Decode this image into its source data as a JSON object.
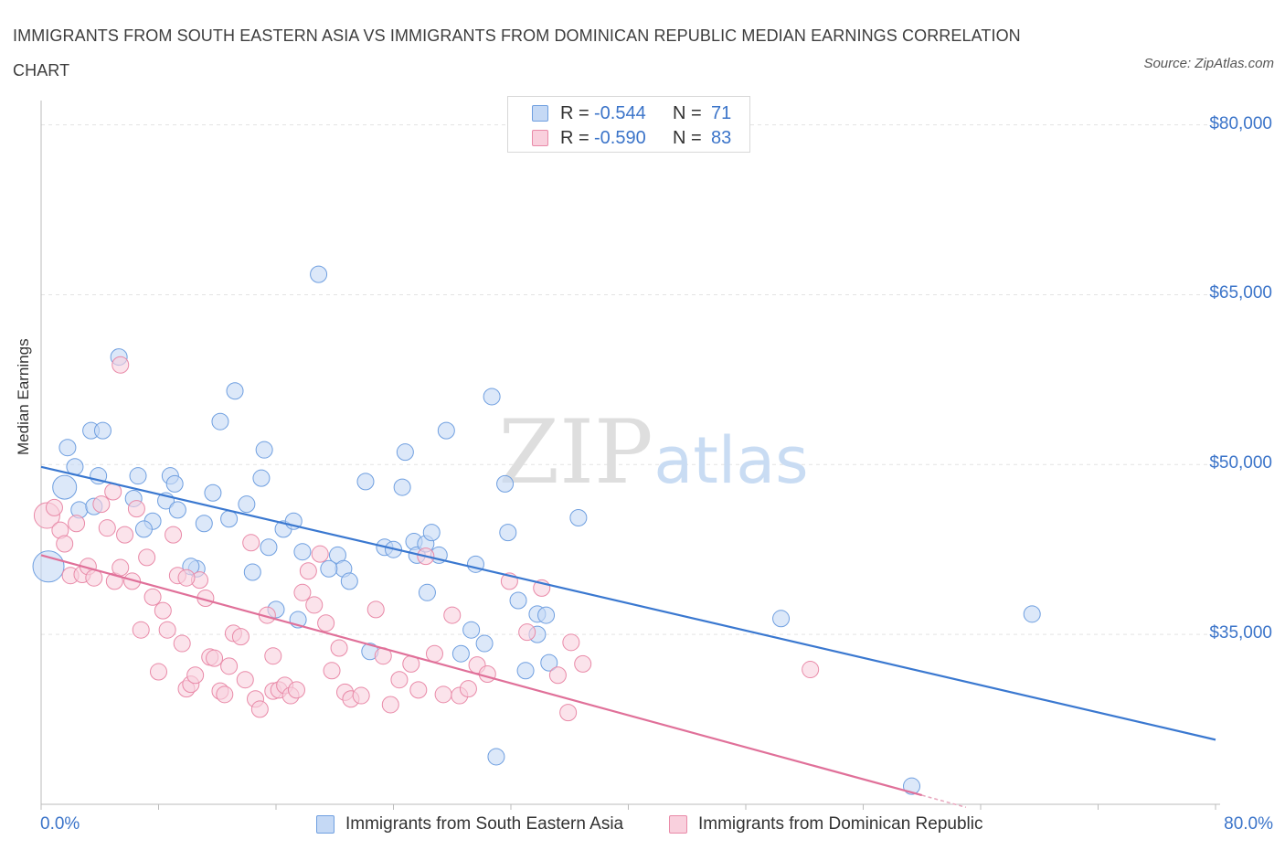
{
  "title": "IMMIGRANTS FROM SOUTH EASTERN ASIA VS IMMIGRANTS FROM DOMINICAN REPUBLIC MEDIAN EARNINGS CORRELATION CHART",
  "source": "Source: ZipAtlas.com",
  "watermark": {
    "zip": "ZIP",
    "atlas": "atlas"
  },
  "legend": {
    "r_label": "R =",
    "n_label": "N =",
    "entries": [
      {
        "r": "-0.544",
        "n": "71",
        "color": "#6f9fe0"
      },
      {
        "r": "-0.590",
        "n": "83",
        "color": "#e98aa8"
      }
    ]
  },
  "chart_data": {
    "type": "scatter",
    "ylabel": "Median Earnings",
    "xlim": [
      0,
      80
    ],
    "ylim": [
      20000,
      81500
    ],
    "y_ticks": [
      {
        "value": 35000,
        "label": "$35,000"
      },
      {
        "value": 50000,
        "label": "$50,000"
      },
      {
        "value": 65000,
        "label": "$65,000"
      },
      {
        "value": 80000,
        "label": "$80,000"
      }
    ],
    "x_tick_labels": [
      {
        "value": 0,
        "label": "0.0%"
      },
      {
        "value": 80,
        "label": "80.0%"
      }
    ],
    "grid": true,
    "legend_position": "top-center",
    "series": [
      {
        "name": "Immigrants from South Eastern Asia",
        "color": "#6f9fe0",
        "fill": "#c5d9f5",
        "trend": {
          "x": [
            0,
            80
          ],
          "y": [
            49800,
            25700
          ]
        },
        "points": [
          [
            0.5,
            41000
          ],
          [
            1.6,
            48000
          ],
          [
            2.6,
            46000
          ],
          [
            1.8,
            51500
          ],
          [
            2.3,
            49800
          ],
          [
            3.4,
            53000
          ],
          [
            5.3,
            59500
          ],
          [
            4.2,
            53000
          ],
          [
            3.9,
            49000
          ],
          [
            6.6,
            49000
          ],
          [
            8.8,
            49000
          ],
          [
            6.3,
            47000
          ],
          [
            9.1,
            48300
          ],
          [
            8.5,
            46800
          ],
          [
            7.6,
            45000
          ],
          [
            9.3,
            46000
          ],
          [
            11.7,
            47500
          ],
          [
            12.2,
            53800
          ],
          [
            13.2,
            56500
          ],
          [
            11.1,
            44800
          ],
          [
            12.8,
            45200
          ],
          [
            10.6,
            40800
          ],
          [
            14.0,
            46500
          ],
          [
            15.2,
            51300
          ],
          [
            15.0,
            48800
          ],
          [
            16.5,
            44300
          ],
          [
            17.2,
            45000
          ],
          [
            18.9,
            66800
          ],
          [
            15.5,
            42700
          ],
          [
            14.4,
            40500
          ],
          [
            17.8,
            42300
          ],
          [
            16.0,
            37200
          ],
          [
            17.5,
            36300
          ],
          [
            20.2,
            42000
          ],
          [
            20.6,
            40800
          ],
          [
            21.0,
            39700
          ],
          [
            22.1,
            48500
          ],
          [
            22.4,
            33500
          ],
          [
            23.4,
            42700
          ],
          [
            24.0,
            42500
          ],
          [
            24.6,
            48000
          ],
          [
            24.8,
            51100
          ],
          [
            25.4,
            43200
          ],
          [
            25.6,
            42000
          ],
          [
            26.2,
            43000
          ],
          [
            27.1,
            42000
          ],
          [
            26.3,
            38700
          ],
          [
            27.6,
            53000
          ],
          [
            28.6,
            33300
          ],
          [
            29.3,
            35400
          ],
          [
            29.6,
            41200
          ],
          [
            30.2,
            34200
          ],
          [
            30.7,
            56000
          ],
          [
            31.6,
            48300
          ],
          [
            31.0,
            24200
          ],
          [
            31.8,
            44000
          ],
          [
            32.5,
            38000
          ],
          [
            33.0,
            31800
          ],
          [
            33.8,
            36800
          ],
          [
            34.4,
            36700
          ],
          [
            33.8,
            35000
          ],
          [
            34.6,
            32500
          ],
          [
            36.6,
            45300
          ],
          [
            50.4,
            36400
          ],
          [
            67.5,
            36800
          ],
          [
            59.3,
            21600
          ],
          [
            3.6,
            46300
          ],
          [
            7.0,
            44300
          ],
          [
            10.2,
            41000
          ],
          [
            19.6,
            40800
          ],
          [
            26.6,
            44000
          ]
        ]
      },
      {
        "name": "Immigrants from Dominican Republic",
        "color": "#e98aa8",
        "fill": "#f9d0dd",
        "trend": {
          "x": [
            0,
            60
          ],
          "y": [
            42000,
            20800
          ]
        },
        "trend_dash": {
          "x": [
            60,
            80
          ],
          "y": [
            20800,
            13700
          ]
        },
        "points": [
          [
            0.4,
            45500
          ],
          [
            0.9,
            46200
          ],
          [
            1.3,
            44200
          ],
          [
            1.6,
            43000
          ],
          [
            2.0,
            40200
          ],
          [
            2.4,
            44800
          ],
          [
            2.8,
            40300
          ],
          [
            3.2,
            41000
          ],
          [
            3.6,
            40000
          ],
          [
            4.1,
            46500
          ],
          [
            4.5,
            44400
          ],
          [
            4.9,
            47600
          ],
          [
            5.0,
            39700
          ],
          [
            5.4,
            40900
          ],
          [
            5.7,
            43800
          ],
          [
            6.2,
            39700
          ],
          [
            6.5,
            46100
          ],
          [
            6.8,
            35400
          ],
          [
            7.2,
            41800
          ],
          [
            7.6,
            38300
          ],
          [
            8.0,
            31700
          ],
          [
            8.3,
            37100
          ],
          [
            8.6,
            35400
          ],
          [
            9.0,
            43800
          ],
          [
            9.3,
            40200
          ],
          [
            9.6,
            34200
          ],
          [
            9.9,
            30200
          ],
          [
            10.2,
            30600
          ],
          [
            10.5,
            31400
          ],
          [
            10.8,
            39800
          ],
          [
            11.2,
            38200
          ],
          [
            11.5,
            33000
          ],
          [
            11.8,
            32900
          ],
          [
            12.2,
            30000
          ],
          [
            12.5,
            29700
          ],
          [
            12.8,
            32200
          ],
          [
            13.1,
            35100
          ],
          [
            13.6,
            34800
          ],
          [
            13.9,
            31000
          ],
          [
            14.3,
            43100
          ],
          [
            14.6,
            29300
          ],
          [
            14.9,
            28400
          ],
          [
            15.4,
            36700
          ],
          [
            15.8,
            30000
          ],
          [
            16.2,
            30100
          ],
          [
            16.6,
            30500
          ],
          [
            17.0,
            29600
          ],
          [
            17.4,
            30100
          ],
          [
            17.8,
            38700
          ],
          [
            18.2,
            40600
          ],
          [
            18.6,
            37600
          ],
          [
            19.0,
            42100
          ],
          [
            19.4,
            36000
          ],
          [
            19.8,
            31800
          ],
          [
            20.3,
            33800
          ],
          [
            20.7,
            29900
          ],
          [
            21.1,
            29300
          ],
          [
            21.8,
            29600
          ],
          [
            22.8,
            37200
          ],
          [
            23.3,
            33100
          ],
          [
            23.8,
            28800
          ],
          [
            24.4,
            31000
          ],
          [
            25.2,
            32400
          ],
          [
            25.7,
            30100
          ],
          [
            26.2,
            41900
          ],
          [
            26.8,
            33300
          ],
          [
            27.4,
            29700
          ],
          [
            28.0,
            36700
          ],
          [
            28.5,
            29600
          ],
          [
            29.1,
            30200
          ],
          [
            29.7,
            32300
          ],
          [
            30.4,
            31500
          ],
          [
            31.9,
            39700
          ],
          [
            33.1,
            35200
          ],
          [
            34.1,
            39100
          ],
          [
            35.2,
            31400
          ],
          [
            35.9,
            28100
          ],
          [
            36.1,
            34300
          ],
          [
            36.9,
            32400
          ],
          [
            52.4,
            31900
          ],
          [
            5.4,
            58800
          ],
          [
            9.9,
            40000
          ],
          [
            15.8,
            33100
          ]
        ]
      }
    ]
  },
  "bottom_legend": [
    {
      "label": "Immigrants from South Eastern Asia"
    },
    {
      "label": "Immigrants from Dominican Republic"
    }
  ]
}
